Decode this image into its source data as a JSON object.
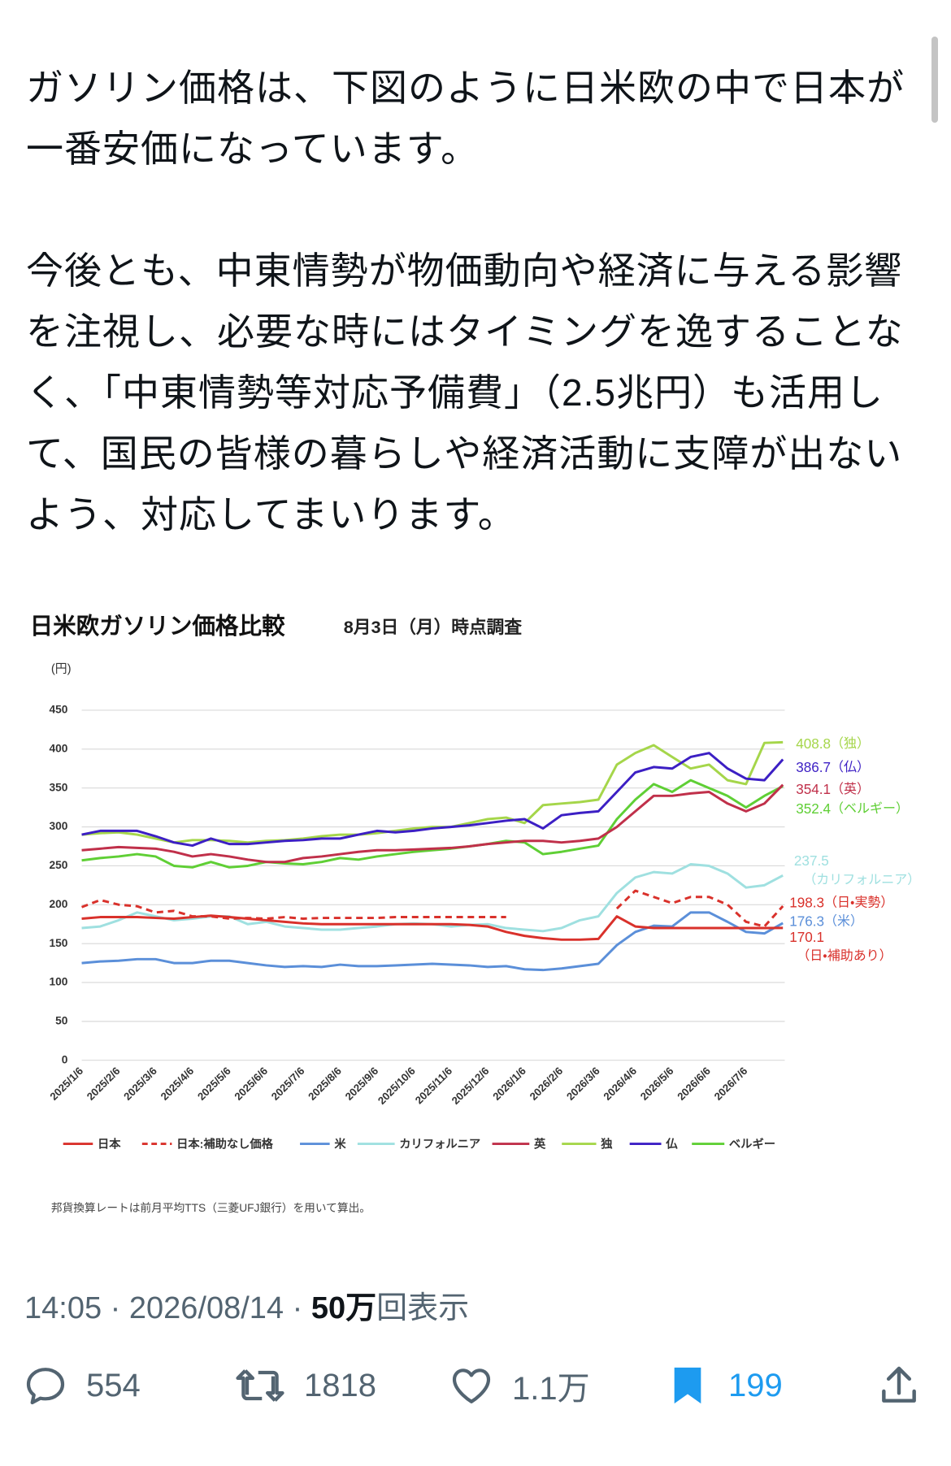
{
  "post": {
    "paragraphs": [
      "ガソリン価格は、下図のように日米欧の中で日本が一番安価になっています。",
      "今後とも、中東情勢が物価動向や経済に与える影響を注視し、必要な時にはタイミングを逸することなく、「中東情勢等対応予備費」（2.5兆円）も活用して、国民の皆様の暮らしや経済活動に支障が出ないよう、対応してまいります。"
    ],
    "timestamp": "14:05 · 2026/08/14 ·",
    "views": {
      "count": "50万",
      "label": "回表示"
    },
    "stats": {
      "replies": "554",
      "reposts": "1818",
      "likes": "1.1万",
      "bookmarks": "199"
    }
  },
  "chart_data": {
    "type": "line",
    "title": "日米欧ガソリン価格比較",
    "subtitle": "8月3日（月）時点調査",
    "y_label": "(円)",
    "note": "邦貨換算レートは前月平均TTS（三菱UFJ銀行）を用いて算出。",
    "categories": [
      "2025/1/6",
      null,
      "2025/2/6",
      null,
      "2025/3/6",
      null,
      "2025/4/6",
      null,
      "2025/5/6",
      null,
      "2025/6/6",
      null,
      "2025/7/6",
      null,
      "2025/8/6",
      null,
      "2025/9/6",
      null,
      "2025/10/6",
      null,
      "2025/11/6",
      null,
      "2025/12/6",
      null,
      "2026/1/6",
      null,
      "2026/2/6",
      null,
      "2026/3/6",
      null,
      "2026/4/6",
      null,
      "2026/5/6",
      null,
      "2026/6/6",
      null,
      "2026/7/6",
      null,
      null
    ],
    "ylim": [
      0,
      450
    ],
    "yticks": [
      0,
      50,
      100,
      150,
      200,
      250,
      300,
      350,
      400,
      450
    ],
    "grid": true,
    "series": [
      {
        "name": "日本",
        "color": "#d9312b",
        "end_note": "（日・補助あり）",
        "values": [
          182,
          184,
          184,
          184,
          183,
          182,
          184,
          186,
          184,
          182,
          180,
          178,
          176,
          175,
          175,
          175,
          175,
          175,
          175,
          175,
          175,
          174,
          172,
          165,
          160,
          157,
          155,
          155,
          156,
          185,
          172,
          170,
          170,
          170,
          170,
          170,
          170,
          170,
          170.1
        ]
      },
      {
        "name": "日本:補助なし価格",
        "color": "#d9312b",
        "dashed": true,
        "end_note": "（日・実勢）",
        "values": [
          197,
          206,
          200,
          198,
          190,
          192,
          185,
          185,
          182,
          183,
          182,
          184,
          182,
          183,
          183,
          183,
          183,
          184,
          184,
          184,
          184,
          184,
          184,
          184,
          null,
          null,
          null,
          null,
          null,
          195,
          218,
          210,
          202,
          210,
          210,
          200,
          178,
          172,
          198.3
        ]
      },
      {
        "name": "米",
        "color": "#5b8fd9",
        "end_note": "（米）",
        "values": [
          125,
          127,
          128,
          130,
          130,
          125,
          125,
          128,
          128,
          125,
          122,
          120,
          121,
          120,
          123,
          121,
          121,
          122,
          123,
          124,
          123,
          122,
          120,
          121,
          117,
          116,
          118,
          121,
          124,
          148,
          165,
          173,
          172,
          190,
          190,
          178,
          165,
          163,
          176.3
        ]
      },
      {
        "name": "カリフォルニア",
        "color": "#9fe0e0",
        "end_note": "（カリフォルニア）",
        "values": [
          170,
          172,
          180,
          190,
          185,
          180,
          182,
          185,
          185,
          175,
          178,
          172,
          170,
          168,
          168,
          170,
          172,
          175,
          176,
          175,
          172,
          174,
          175,
          170,
          168,
          166,
          170,
          180,
          185,
          215,
          235,
          242,
          240,
          252,
          250,
          240,
          222,
          225,
          237.5
        ]
      },
      {
        "name": "英",
        "color": "#c0304a",
        "end_note": "（英）",
        "values": [
          270,
          272,
          274,
          273,
          272,
          268,
          262,
          265,
          262,
          258,
          255,
          255,
          260,
          262,
          265,
          268,
          270,
          270,
          271,
          272,
          273,
          275,
          278,
          280,
          282,
          282,
          280,
          282,
          285,
          300,
          320,
          340,
          340,
          343,
          345,
          330,
          320,
          330,
          354.1
        ]
      },
      {
        "name": "独",
        "color": "#a5d64a",
        "end_note": "（独）",
        "values": [
          290,
          292,
          293,
          290,
          285,
          280,
          283,
          283,
          282,
          280,
          282,
          283,
          285,
          288,
          290,
          290,
          292,
          295,
          298,
          300,
          300,
          305,
          310,
          312,
          305,
          328,
          330,
          332,
          335,
          380,
          395,
          405,
          390,
          375,
          380,
          360,
          355,
          408,
          408.8
        ]
      },
      {
        "name": "仏",
        "color": "#3c1fc4",
        "end_note": "（仏）",
        "values": [
          290,
          295,
          295,
          295,
          288,
          280,
          276,
          285,
          278,
          278,
          280,
          282,
          283,
          285,
          285,
          290,
          295,
          293,
          295,
          298,
          300,
          302,
          305,
          308,
          310,
          298,
          315,
          318,
          320,
          345,
          370,
          377,
          375,
          390,
          395,
          375,
          362,
          360,
          386.7
        ]
      },
      {
        "name": "ベルギー",
        "color": "#5fcf35",
        "end_note": "（ベルギー）",
        "values": [
          257,
          260,
          262,
          265,
          262,
          250,
          248,
          255,
          248,
          250,
          255,
          253,
          252,
          255,
          260,
          258,
          262,
          265,
          268,
          270,
          272,
          275,
          278,
          282,
          280,
          265,
          268,
          272,
          276,
          310,
          335,
          355,
          345,
          360,
          350,
          340,
          325,
          340,
          352.4
        ]
      }
    ]
  }
}
